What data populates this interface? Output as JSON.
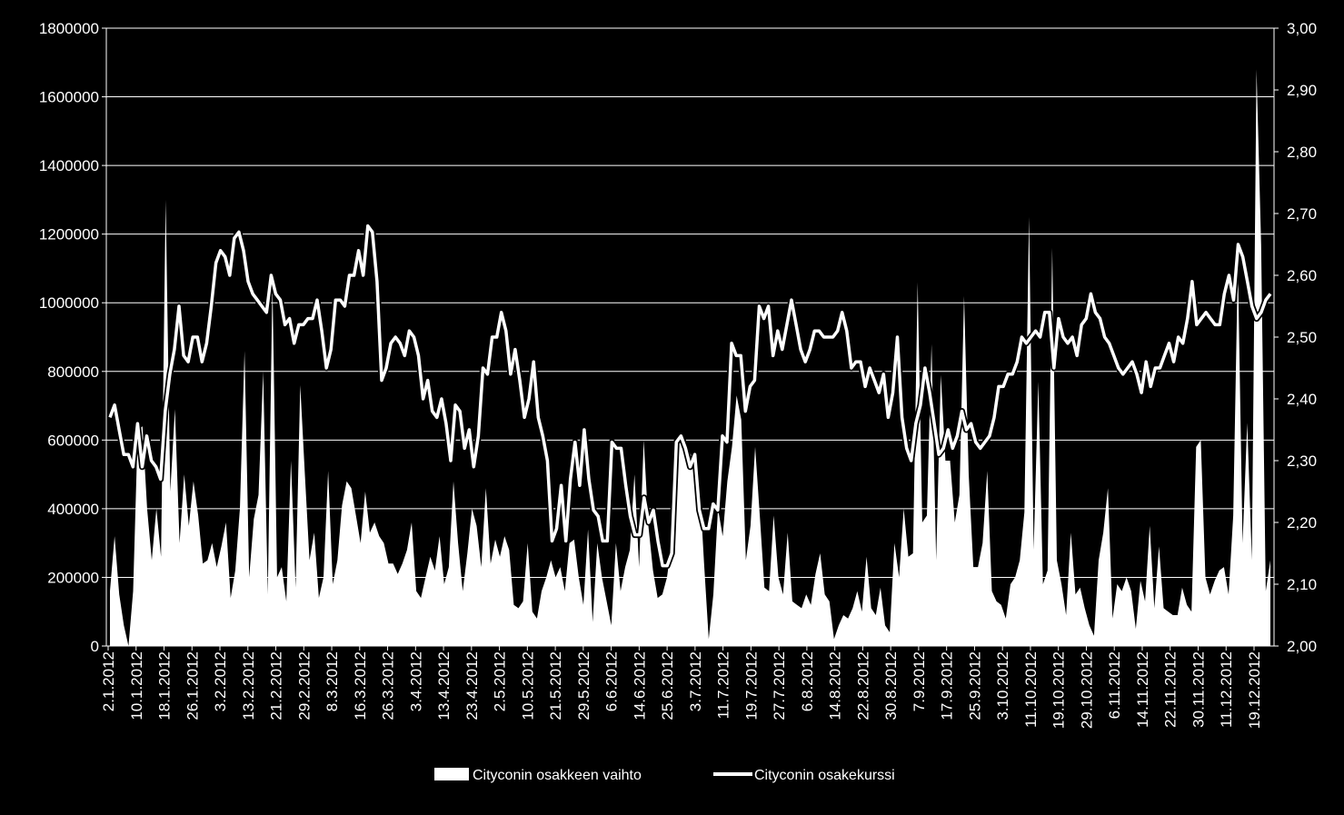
{
  "chart_data": {
    "type": "area+line",
    "title": "",
    "background": "#000000",
    "series_color": "#ffffff",
    "y_left": {
      "min": 0,
      "max": 1800000,
      "ticks": [
        "0",
        "200000",
        "400000",
        "600000",
        "800000",
        "1000000",
        "1200000",
        "1400000",
        "1600000",
        "1800000"
      ]
    },
    "y_right": {
      "min": 2.0,
      "max": 3.0,
      "ticks": [
        "2,00",
        "2,10",
        "2,20",
        "2,30",
        "2,40",
        "2,50",
        "2,60",
        "2,70",
        "2,80",
        "2,90",
        "3,00"
      ]
    },
    "grid": "horizontal",
    "x_tick_labels": [
      "2.1.2012",
      "10.1.2012",
      "18.1.2012",
      "26.1.2012",
      "3.2.2012",
      "13.2.2012",
      "21.2.2012",
      "29.2.2012",
      "8.3.2012",
      "16.3.2012",
      "26.3.2012",
      "3.4.2012",
      "13.4.2012",
      "23.4.2012",
      "2.5.2012",
      "10.5.2012",
      "21.5.2012",
      "29.5.2012",
      "6.6.2012",
      "14.6.2012",
      "25.6.2012",
      "3.7.2012",
      "11.7.2012",
      "19.7.2012",
      "27.7.2012",
      "6.8.2012",
      "14.8.2012",
      "22.8.2012",
      "30.8.2012",
      "7.9.2012",
      "17.9.2012",
      "25.9.2012",
      "3.10.2012",
      "11.10.2012",
      "19.10.2012",
      "29.10.2012",
      "6.11.2012",
      "14.11.2012",
      "22.11.2012",
      "30.11.2012",
      "11.12.2012",
      "19.12.2012"
    ],
    "legend_position": "bottom",
    "legend": {
      "volume": "Cityconin osakkeen vaihto",
      "price": "Cityconin osakekurssi"
    },
    "series": [
      {
        "name": "Cityconin osakkeen vaihto",
        "kind": "area",
        "axis": "left",
        "values": [
          160000,
          320000,
          150000,
          60000,
          0,
          160000,
          630000,
          640000,
          400000,
          250000,
          400000,
          260000,
          1300000,
          450000,
          690000,
          300000,
          500000,
          350000,
          480000,
          380000,
          240000,
          250000,
          300000,
          230000,
          290000,
          360000,
          140000,
          220000,
          400000,
          860000,
          200000,
          370000,
          440000,
          800000,
          150000,
          1060000,
          200000,
          230000,
          130000,
          540000,
          170000,
          760000,
          500000,
          250000,
          330000,
          140000,
          200000,
          510000,
          180000,
          250000,
          410000,
          480000,
          460000,
          380000,
          300000,
          450000,
          330000,
          360000,
          320000,
          300000,
          240000,
          240000,
          210000,
          240000,
          280000,
          360000,
          160000,
          140000,
          200000,
          260000,
          220000,
          320000,
          180000,
          230000,
          480000,
          300000,
          160000,
          270000,
          400000,
          350000,
          230000,
          460000,
          240000,
          310000,
          260000,
          320000,
          280000,
          120000,
          110000,
          130000,
          300000,
          100000,
          80000,
          160000,
          200000,
          250000,
          200000,
          230000,
          160000,
          300000,
          310000,
          200000,
          120000,
          340000,
          70000,
          300000,
          200000,
          130000,
          60000,
          300000,
          160000,
          230000,
          280000,
          500000,
          230000,
          600000,
          350000,
          220000,
          140000,
          150000,
          200000,
          300000,
          600000,
          620000,
          590000,
          560000,
          540000,
          480000,
          240000,
          20000,
          150000,
          400000,
          320000,
          480000,
          580000,
          730000,
          660000,
          250000,
          350000,
          580000,
          380000,
          170000,
          160000,
          380000,
          200000,
          150000,
          330000,
          130000,
          120000,
          110000,
          150000,
          120000,
          210000,
          270000,
          150000,
          130000,
          20000,
          60000,
          90000,
          80000,
          110000,
          160000,
          100000,
          260000,
          110000,
          90000,
          170000,
          60000,
          40000,
          300000,
          200000,
          400000,
          260000,
          270000,
          1060000,
          360000,
          380000,
          880000,
          250000,
          790000,
          540000,
          540000,
          360000,
          440000,
          1020000,
          500000,
          230000,
          230000,
          300000,
          510000,
          160000,
          130000,
          120000,
          80000,
          180000,
          200000,
          250000,
          390000,
          1250000,
          280000,
          770000,
          180000,
          220000,
          1160000,
          250000,
          180000,
          90000,
          330000,
          150000,
          170000,
          110000,
          60000,
          30000,
          250000,
          330000,
          460000,
          80000,
          180000,
          160000,
          200000,
          160000,
          50000,
          190000,
          130000,
          350000,
          110000,
          290000,
          110000,
          100000,
          90000,
          90000,
          170000,
          120000,
          100000,
          580000,
          600000,
          200000,
          150000,
          190000,
          220000,
          230000,
          150000,
          380000,
          1120000,
          300000,
          650000,
          250000,
          1680000,
          1170000,
          160000,
          250000
        ]
      },
      {
        "name": "Cityconin osakekurssi",
        "kind": "line",
        "axis": "right",
        "values": [
          2.37,
          2.39,
          2.35,
          2.31,
          2.31,
          2.29,
          2.36,
          2.29,
          2.34,
          2.3,
          2.29,
          2.27,
          2.38,
          2.44,
          2.48,
          2.55,
          2.47,
          2.46,
          2.5,
          2.5,
          2.46,
          2.49,
          2.55,
          2.62,
          2.64,
          2.63,
          2.6,
          2.66,
          2.67,
          2.64,
          2.59,
          2.57,
          2.56,
          2.55,
          2.54,
          2.6,
          2.57,
          2.56,
          2.52,
          2.53,
          2.49,
          2.52,
          2.52,
          2.53,
          2.53,
          2.56,
          2.51,
          2.45,
          2.48,
          2.56,
          2.56,
          2.55,
          2.6,
          2.6,
          2.64,
          2.6,
          2.68,
          2.67,
          2.59,
          2.43,
          2.45,
          2.49,
          2.5,
          2.49,
          2.47,
          2.51,
          2.5,
          2.47,
          2.4,
          2.43,
          2.38,
          2.37,
          2.4,
          2.36,
          2.3,
          2.39,
          2.38,
          2.32,
          2.35,
          2.29,
          2.34,
          2.45,
          2.44,
          2.5,
          2.5,
          2.54,
          2.51,
          2.44,
          2.48,
          2.43,
          2.37,
          2.4,
          2.46,
          2.37,
          2.34,
          2.3,
          2.17,
          2.19,
          2.26,
          2.17,
          2.27,
          2.33,
          2.26,
          2.35,
          2.27,
          2.22,
          2.21,
          2.17,
          2.17,
          2.33,
          2.32,
          2.32,
          2.26,
          2.21,
          2.18,
          2.18,
          2.24,
          2.2,
          2.22,
          2.17,
          2.13,
          2.13,
          2.15,
          2.33,
          2.34,
          2.32,
          2.29,
          2.31,
          2.22,
          2.19,
          2.19,
          2.23,
          2.22,
          2.34,
          2.33,
          2.49,
          2.47,
          2.47,
          2.38,
          2.42,
          2.43,
          2.55,
          2.53,
          2.55,
          2.47,
          2.51,
          2.48,
          2.52,
          2.56,
          2.52,
          2.48,
          2.46,
          2.48,
          2.51,
          2.51,
          2.5,
          2.5,
          2.5,
          2.51,
          2.54,
          2.51,
          2.45,
          2.46,
          2.46,
          2.42,
          2.45,
          2.43,
          2.41,
          2.44,
          2.37,
          2.41,
          2.5,
          2.37,
          2.32,
          2.3,
          2.36,
          2.39,
          2.45,
          2.41,
          2.36,
          2.31,
          2.32,
          2.35,
          2.32,
          2.34,
          2.38,
          2.35,
          2.36,
          2.33,
          2.32,
          2.33,
          2.34,
          2.37,
          2.42,
          2.42,
          2.44,
          2.44,
          2.46,
          2.5,
          2.49,
          2.5,
          2.51,
          2.5,
          2.54,
          2.54,
          2.45,
          2.53,
          2.5,
          2.49,
          2.5,
          2.47,
          2.52,
          2.53,
          2.57,
          2.54,
          2.53,
          2.5,
          2.49,
          2.47,
          2.45,
          2.44,
          2.45,
          2.46,
          2.44,
          2.41,
          2.46,
          2.42,
          2.45,
          2.45,
          2.47,
          2.49,
          2.46,
          2.5,
          2.49,
          2.53,
          2.59,
          2.52,
          2.53,
          2.54,
          2.53,
          2.52,
          2.52,
          2.57,
          2.6,
          2.56,
          2.65,
          2.63,
          2.59,
          2.55,
          2.53,
          2.54,
          2.56,
          2.57
        ]
      }
    ]
  }
}
